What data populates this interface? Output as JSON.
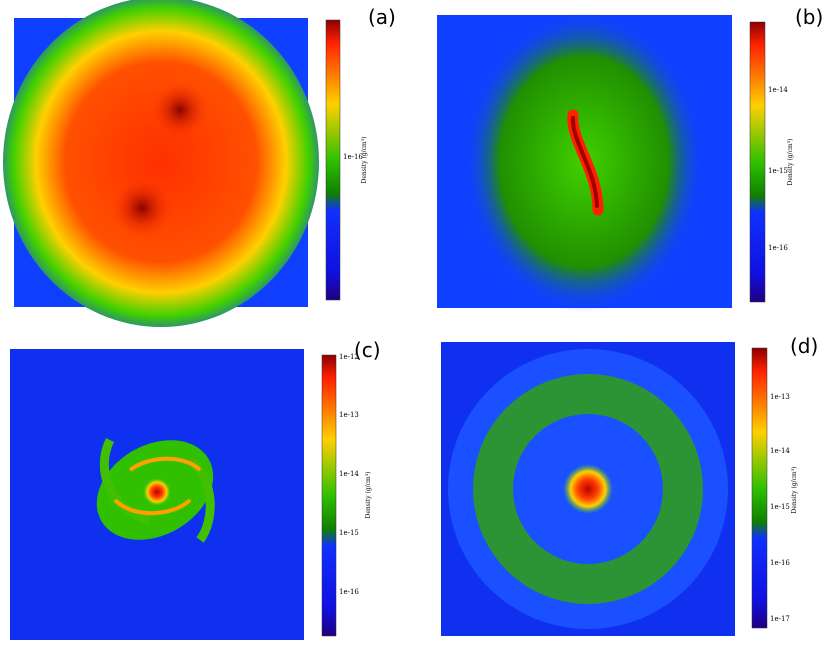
{
  "panels": [
    {
      "label": "(a)",
      "colorbar_title": "Density (g/cm³)",
      "ticks": [
        "1e-16"
      ]
    },
    {
      "label": "(b)",
      "colorbar_title": "Density (g/cm³)",
      "ticks": [
        "1e-14",
        "1e-15",
        "1e-16"
      ]
    },
    {
      "label": "(c)",
      "colorbar_title": "Density (g/cm³)",
      "ticks": [
        "1e-12",
        "1e-13",
        "1e-14",
        "1e-15",
        "1e-16"
      ]
    },
    {
      "label": "(d)",
      "colorbar_title": "Density (g/cm³)",
      "ticks": [
        "1e-13",
        "1e-14",
        "1e-15",
        "1e-16",
        "1e-17"
      ]
    }
  ]
}
